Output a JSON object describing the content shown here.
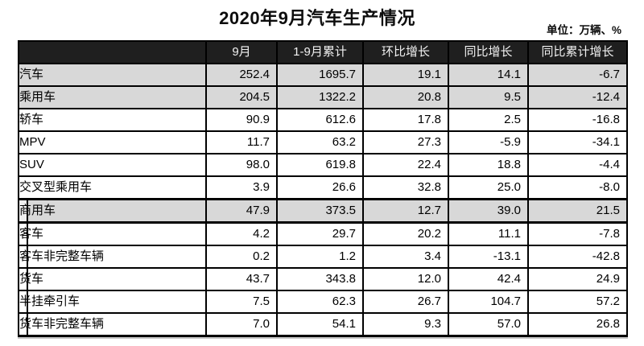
{
  "page_title": "2020年9月汽车生产情况",
  "unit_label": "单位：万辆、%",
  "colors": {
    "header_bg": "#1f1f1f",
    "header_text": "#f1f1f1",
    "shaded_row": "#d8d8d8",
    "border": "#000000",
    "page_bg": "#ffffff"
  },
  "chart_data": {
    "type": "table",
    "title": "2020年9月汽车生产情况",
    "unit": "万辆、%",
    "columns": [
      "",
      "9月",
      "1-9月累计",
      "环比增长",
      "同比增长",
      "同比累计增长"
    ],
    "rows": [
      {
        "label": "汽车",
        "indent": 0,
        "shaded": true,
        "section": 1,
        "heavy": false,
        "values": [
          252.4,
          1695.7,
          19.1,
          14.1,
          -6.7
        ]
      },
      {
        "label": "乘用车",
        "indent": 1,
        "shaded": true,
        "section": 1,
        "heavy": false,
        "values": [
          204.5,
          1322.2,
          20.8,
          9.5,
          -12.4
        ]
      },
      {
        "label": "轿车",
        "indent": 2,
        "shaded": false,
        "section": 1,
        "heavy": false,
        "values": [
          90.9,
          612.6,
          17.8,
          2.5,
          -16.8
        ]
      },
      {
        "label": "MPV",
        "indent": 2,
        "shaded": false,
        "section": 1,
        "heavy": false,
        "values": [
          11.7,
          63.2,
          27.3,
          -5.9,
          -34.1
        ]
      },
      {
        "label": "SUV",
        "indent": 2,
        "shaded": false,
        "section": 1,
        "heavy": false,
        "values": [
          98.0,
          619.8,
          22.4,
          18.8,
          -4.4
        ]
      },
      {
        "label": "交叉型乘用车",
        "indent": 2,
        "shaded": false,
        "section": 1,
        "heavy": false,
        "values": [
          3.9,
          26.6,
          32.8,
          25.0,
          -8.0
        ]
      },
      {
        "label": "商用车",
        "indent": 1,
        "shaded": true,
        "section": 2,
        "heavy": true,
        "values": [
          47.9,
          373.5,
          12.7,
          39.0,
          21.5
        ]
      },
      {
        "label": "客车",
        "indent": 2,
        "shaded": false,
        "section": 2,
        "heavy": false,
        "values": [
          4.2,
          29.7,
          20.2,
          11.1,
          -7.8
        ]
      },
      {
        "label": "客车非完整车辆",
        "indent": 3,
        "shaded": false,
        "section": 2,
        "heavy": false,
        "values": [
          0.2,
          1.2,
          3.4,
          -13.1,
          -42.8
        ]
      },
      {
        "label": "货车",
        "indent": 2,
        "shaded": false,
        "section": 2,
        "heavy": false,
        "values": [
          43.7,
          343.8,
          12.0,
          42.4,
          24.9
        ]
      },
      {
        "label": "半挂牵引车",
        "indent": 3,
        "shaded": false,
        "section": 2,
        "heavy": false,
        "values": [
          7.5,
          62.3,
          26.7,
          104.7,
          57.2
        ]
      },
      {
        "label": "货车非完整车辆",
        "indent": 3,
        "shaded": false,
        "section": 2,
        "heavy": false,
        "values": [
          7.0,
          54.1,
          9.3,
          57.0,
          26.8
        ]
      }
    ],
    "layout": {
      "value_decimals": 1,
      "header_style": "black",
      "grid": true
    }
  }
}
